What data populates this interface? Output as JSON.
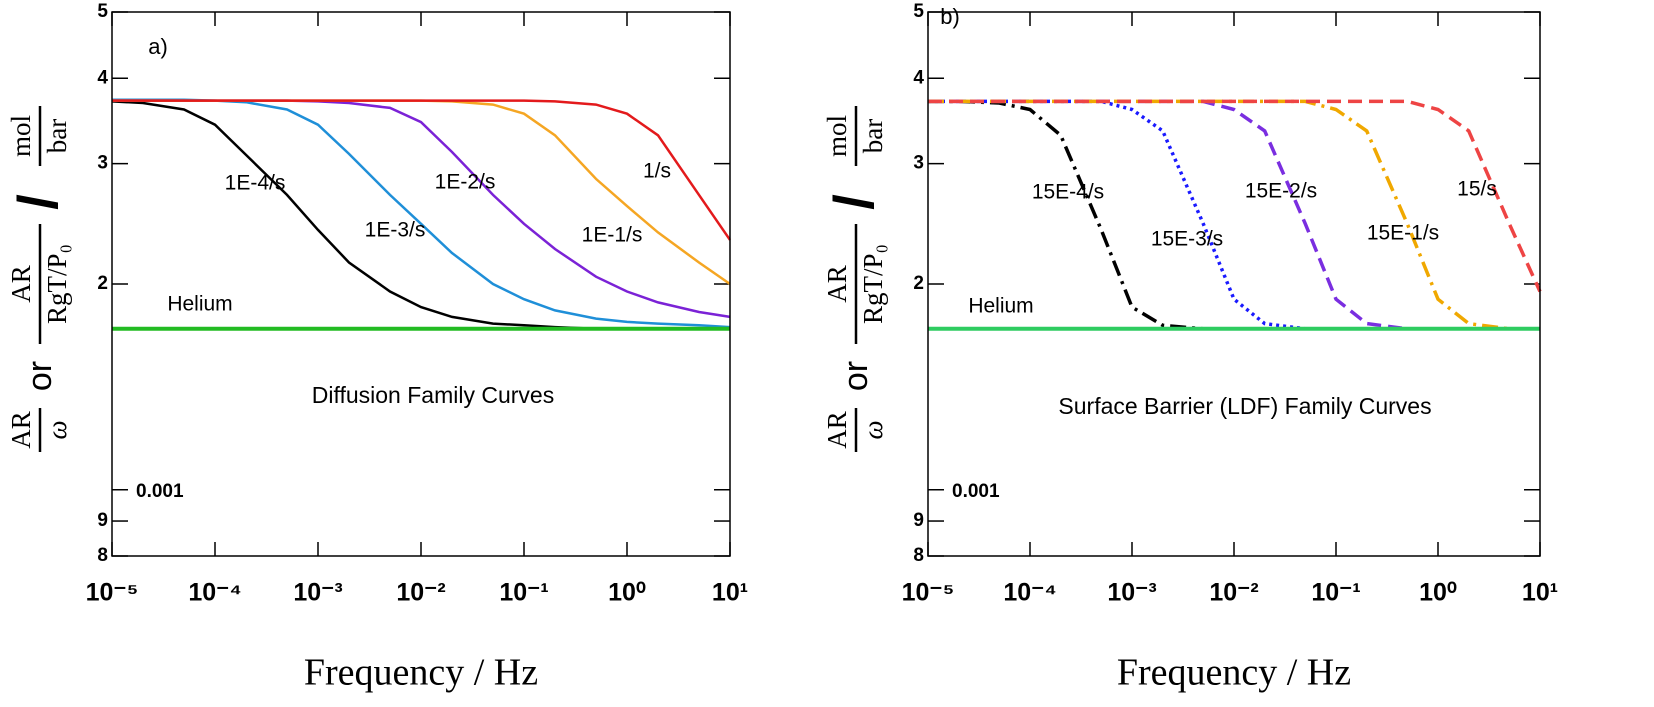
{
  "chart_data": [
    {
      "type": "line",
      "panel_label": "a)",
      "annotation": "Diffusion Family Curves",
      "xlabel": "Frequency / Hz",
      "ylabel": {
        "num1": "AR",
        "den1": "ω",
        "or": "or",
        "num2": "AR",
        "den2": "RgT/P₀",
        "slash": "/",
        "num3": "mol",
        "den3": "bar"
      },
      "log_x": true,
      "log_y": true,
      "xlim": [
        1e-05,
        10
      ],
      "xticks": [
        {
          "value": 1e-05,
          "label": "10⁻⁵"
        },
        {
          "value": 0.0001,
          "label": "10⁻⁴"
        },
        {
          "value": 0.001,
          "label": "10⁻³"
        },
        {
          "value": 0.01,
          "label": "10⁻²"
        },
        {
          "value": 0.1,
          "label": "10⁻¹"
        },
        {
          "value": 1,
          "label": "10⁰"
        },
        {
          "value": 10,
          "label": "10¹"
        }
      ],
      "ylim": [
        0.0008,
        0.005
      ],
      "yticks": [
        {
          "value": 0.005,
          "label": "5"
        },
        {
          "value": 0.004,
          "label": "4"
        },
        {
          "value": 0.003,
          "label": "3"
        },
        {
          "value": 0.002,
          "label": "2"
        },
        0.001,
        {
          "value": 0.0009,
          "label": "9"
        },
        {
          "value": 0.0008,
          "label": "8"
        }
      ],
      "x": [
        1e-05,
        2e-05,
        5e-05,
        0.0001,
        0.0002,
        0.0005,
        0.001,
        0.002,
        0.005,
        0.01,
        0.02,
        0.05,
        0.1,
        0.2,
        0.5,
        1,
        2,
        5,
        10
      ],
      "series": [
        {
          "name": "1E-4/s",
          "color": "#000000",
          "style": "solid",
          "values": [
            0.0037,
            0.00368,
            0.0036,
            0.00342,
            0.00309,
            0.0027,
            0.0024,
            0.00215,
            0.00195,
            0.00185,
            0.00179,
            0.00175,
            0.00174,
            0.00173,
            0.00172,
            0.00172,
            0.00172,
            0.00172,
            0.00172
          ]
        },
        {
          "name": "1E-3/s",
          "color": "#1f8fd8",
          "style": "solid",
          "values": [
            0.00372,
            0.00372,
            0.00372,
            0.00371,
            0.00369,
            0.0036,
            0.00342,
            0.0031,
            0.0027,
            0.00245,
            0.00222,
            0.002,
            0.0019,
            0.00183,
            0.00178,
            0.00176,
            0.00175,
            0.00174,
            0.00173
          ]
        },
        {
          "name": "1E-2/s",
          "color": "#7b22d6",
          "style": "solid",
          "values": [
            0.00371,
            0.00371,
            0.00371,
            0.00371,
            0.00371,
            0.00371,
            0.0037,
            0.00368,
            0.00362,
            0.00345,
            0.00312,
            0.0027,
            0.00245,
            0.00225,
            0.00205,
            0.00195,
            0.00188,
            0.00182,
            0.00179
          ]
        },
        {
          "name": "1E-1/s",
          "color": "#f5a623",
          "style": "solid",
          "values": [
            0.00371,
            0.00371,
            0.00371,
            0.00371,
            0.00371,
            0.00371,
            0.00371,
            0.00371,
            0.00371,
            0.00371,
            0.0037,
            0.00366,
            0.00355,
            0.0033,
            0.00285,
            0.0026,
            0.00238,
            0.00215,
            0.002
          ]
        },
        {
          "name": "1/s",
          "color": "#e31a1c",
          "style": "solid",
          "values": [
            0.00371,
            0.00371,
            0.00371,
            0.00371,
            0.00371,
            0.00371,
            0.00371,
            0.00371,
            0.00371,
            0.00371,
            0.00371,
            0.00371,
            0.00371,
            0.0037,
            0.00366,
            0.00355,
            0.0033,
            0.0027,
            0.00232
          ]
        },
        {
          "name": "Helium",
          "color": "#22bb22",
          "style": "solid",
          "values": [
            0.00172,
            0.00172,
            0.00172,
            0.00172,
            0.00172,
            0.00172,
            0.00172,
            0.00172,
            0.00172,
            0.00172,
            0.00172,
            0.00172,
            0.00172,
            0.00172,
            0.00172,
            0.00172,
            0.00172,
            0.00172,
            0.00172
          ]
        }
      ]
    },
    {
      "type": "line",
      "panel_label": "b)",
      "annotation": "Surface Barrier (LDF) Family Curves",
      "xlabel": "Frequency / Hz",
      "ylabel": {
        "num1": "AR",
        "den1": "ω",
        "or": "or",
        "num2": "AR",
        "den2": "RgT/P₀",
        "slash": "/",
        "num3": "mol",
        "den3": "bar"
      },
      "log_x": true,
      "log_y": true,
      "xlim": [
        1e-05,
        10
      ],
      "xticks": [
        {
          "value": 1e-05,
          "label": "10⁻⁵"
        },
        {
          "value": 0.0001,
          "label": "10⁻⁴"
        },
        {
          "value": 0.001,
          "label": "10⁻³"
        },
        {
          "value": 0.01,
          "label": "10⁻²"
        },
        {
          "value": 0.1,
          "label": "10⁻¹"
        },
        {
          "value": 1,
          "label": "10⁰"
        },
        {
          "value": 10,
          "label": "10¹"
        }
      ],
      "ylim": [
        0.0008,
        0.005
      ],
      "yticks": [
        {
          "value": 0.005,
          "label": "5"
        },
        {
          "value": 0.004,
          "label": "4"
        },
        {
          "value": 0.003,
          "label": "3"
        },
        {
          "value": 0.002,
          "label": "2"
        },
        0.001,
        {
          "value": 0.0009,
          "label": "9"
        },
        {
          "value": 0.0008,
          "label": "8"
        }
      ],
      "x": [
        1e-05,
        2e-05,
        5e-05,
        0.0001,
        0.0002,
        0.0005,
        0.001,
        0.002,
        0.005,
        0.01,
        0.02,
        0.05,
        0.1,
        0.2,
        0.5,
        1,
        2,
        5,
        10
      ],
      "series": [
        {
          "name": "15E-4/s",
          "color": "#000000",
          "style": "dashdot",
          "values": [
            0.0037,
            0.0037,
            0.00368,
            0.0036,
            0.0033,
            0.0024,
            0.00185,
            0.00174,
            0.00172,
            0.00172,
            0.00172,
            0.00172,
            0.00172,
            0.00172,
            0.00172,
            0.00172,
            0.00172,
            0.00172,
            0.00172
          ]
        },
        {
          "name": "15E-3/s",
          "color": "#1a1aff",
          "style": "dotted",
          "values": [
            0.0037,
            0.0037,
            0.0037,
            0.0037,
            0.0037,
            0.0037,
            0.0036,
            0.00335,
            0.00245,
            0.0019,
            0.00175,
            0.00172,
            0.00172,
            0.00172,
            0.00172,
            0.00172,
            0.00172,
            0.00172,
            0.00172
          ]
        },
        {
          "name": "15E-2/s",
          "color": "#7a2ee0",
          "style": "dashed",
          "values": [
            0.0037,
            0.0037,
            0.0037,
            0.0037,
            0.0037,
            0.0037,
            0.0037,
            0.0037,
            0.0037,
            0.0036,
            0.00335,
            0.00245,
            0.0019,
            0.00175,
            0.00172,
            0.00172,
            0.00172,
            0.00172,
            0.00172
          ]
        },
        {
          "name": "15E-1/s",
          "color": "#f0a800",
          "style": "dashdot",
          "values": [
            0.0037,
            0.0037,
            0.0037,
            0.0037,
            0.0037,
            0.0037,
            0.0037,
            0.0037,
            0.0037,
            0.0037,
            0.0037,
            0.0037,
            0.0036,
            0.00335,
            0.00245,
            0.0019,
            0.00175,
            0.00172,
            0.00172
          ]
        },
        {
          "name": "15/s",
          "color": "#ee4444",
          "style": "dashed",
          "values": [
            0.0037,
            0.0037,
            0.0037,
            0.0037,
            0.0037,
            0.0037,
            0.0037,
            0.0037,
            0.0037,
            0.0037,
            0.0037,
            0.0037,
            0.0037,
            0.0037,
            0.0037,
            0.0036,
            0.00335,
            0.00245,
            0.00195
          ]
        },
        {
          "name": "Helium",
          "color": "#2ecc60",
          "style": "solid",
          "values": [
            0.00172,
            0.00172,
            0.00172,
            0.00172,
            0.00172,
            0.00172,
            0.00172,
            0.00172,
            0.00172,
            0.00172,
            0.00172,
            0.00172,
            0.00172,
            0.00172,
            0.00172,
            0.00172,
            0.00172,
            0.00172,
            0.00172
          ]
        }
      ]
    }
  ]
}
